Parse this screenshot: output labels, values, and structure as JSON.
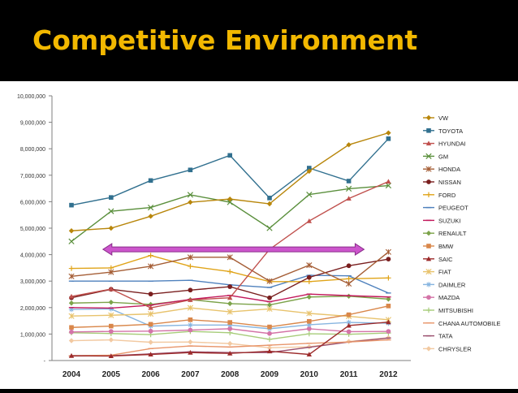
{
  "slide": {
    "title": "Competitive Environment"
  },
  "chart_data": {
    "type": "line",
    "x": [
      "2004",
      "2005",
      "2006",
      "2007",
      "2008",
      "2009",
      "2010",
      "2011",
      "2012"
    ],
    "ylim": [
      0,
      10000000
    ],
    "y_ticks": [
      "-",
      "1,000,000",
      "2,000,000",
      "3,000,000",
      "4,000,000",
      "5,000,000",
      "6,000,000",
      "7,000,000",
      "8,000,000",
      "9,000,000",
      "10,000,000"
    ],
    "legend_position": "right",
    "grid": false,
    "annotation": {
      "type": "double-headed-arrow",
      "color": "#cc55cc",
      "x_from": "2005",
      "x_to": "2012",
      "y": 4200000
    },
    "series": [
      {
        "name": "VW",
        "color": "#b8860b",
        "marker": "diamond",
        "values": [
          4900000,
          5000000,
          5450000,
          5980000,
          6100000,
          5920000,
          7150000,
          8150000,
          8600000
        ]
      },
      {
        "name": "TOYOTA",
        "color": "#31708f",
        "marker": "square",
        "values": [
          5870000,
          6160000,
          6800000,
          7200000,
          7750000,
          6140000,
          7270000,
          6780000,
          8380000
        ]
      },
      {
        "name": "HYUNDAI",
        "color": "#c0504d",
        "marker": "triangle",
        "values": [
          2420000,
          2700000,
          1990000,
          2290000,
          2370000,
          4200000,
          5270000,
          6120000,
          6760000
        ]
      },
      {
        "name": "GM",
        "color": "#5a8f3c",
        "marker": "x",
        "values": [
          4500000,
          5640000,
          5780000,
          6260000,
          5980000,
          5000000,
          6270000,
          6490000,
          6610000
        ]
      },
      {
        "name": "HONDA",
        "color": "#a55e36",
        "marker": "star",
        "values": [
          3180000,
          3340000,
          3560000,
          3900000,
          3900000,
          3000000,
          3600000,
          2900000,
          4100000
        ]
      },
      {
        "name": "NISSAN",
        "color": "#7a1f1f",
        "marker": "circle",
        "values": [
          2370000,
          2690000,
          2510000,
          2660000,
          2790000,
          2370000,
          3140000,
          3580000,
          3830000
        ]
      },
      {
        "name": "FORD",
        "color": "#e0a419",
        "marker": "plus",
        "values": [
          3480000,
          3500000,
          3970000,
          3560000,
          3360000,
          2980000,
          2980000,
          3090000,
          3120000
        ]
      },
      {
        "name": "PEUGEOT",
        "color": "#4f81bd",
        "marker": "dash",
        "values": [
          3000000,
          3000000,
          3000000,
          3030000,
          2860000,
          2760000,
          3220000,
          3200000,
          2550000
        ]
      },
      {
        "name": "SUZUKI",
        "color": "#c2185b",
        "marker": "dash",
        "values": [
          2000000,
          1980000,
          2090000,
          2310000,
          2460000,
          2220000,
          2510000,
          2450000,
          2400000
        ]
      },
      {
        "name": "RENAULT",
        "color": "#7ca34a",
        "marker": "diamond",
        "values": [
          2170000,
          2200000,
          2120000,
          2300000,
          2150000,
          2100000,
          2400000,
          2430000,
          2320000
        ]
      },
      {
        "name": "BMW",
        "color": "#d9874a",
        "marker": "square",
        "values": [
          1250000,
          1300000,
          1370000,
          1540000,
          1440000,
          1270000,
          1480000,
          1730000,
          2060000
        ]
      },
      {
        "name": "SAIC",
        "color": "#9c2b2b",
        "marker": "triangle",
        "values": [
          180000,
          170000,
          230000,
          300000,
          270000,
          350000,
          230000,
          1320000,
          1450000
        ]
      },
      {
        "name": "FIAT",
        "color": "#e8c36d",
        "marker": "star",
        "values": [
          1680000,
          1710000,
          1760000,
          1990000,
          1840000,
          1950000,
          1780000,
          1670000,
          1540000
        ]
      },
      {
        "name": "DAIMLER",
        "color": "#87b5e0",
        "marker": "asterisk",
        "values": [
          1930000,
          1950000,
          1300000,
          1340000,
          1340000,
          1200000,
          1350000,
          1440000,
          1410000
        ]
      },
      {
        "name": "MAZDA",
        "color": "#d474a8",
        "marker": "circle",
        "values": [
          1080000,
          1100000,
          1110000,
          1150000,
          1200000,
          1020000,
          1200000,
          1090000,
          1100000
        ]
      },
      {
        "name": "MITSUBISHI",
        "color": "#a7cc7a",
        "marker": "plus",
        "values": [
          1050000,
          1020000,
          980000,
          1100000,
          1050000,
          800000,
          1010000,
          990000,
          1040000
        ]
      },
      {
        "name": "CHANA AUTOMOBILE",
        "color": "#e8956a",
        "marker": "dash",
        "values": [
          180000,
          200000,
          450000,
          550000,
          510000,
          580000,
          650000,
          700000,
          780000
        ]
      },
      {
        "name": "TATA",
        "color": "#9a4f6e",
        "marker": "dash",
        "values": [
          170000,
          180000,
          250000,
          330000,
          300000,
          300000,
          500000,
          700000,
          850000
        ]
      },
      {
        "name": "CHRYSLER",
        "color": "#f2c9a1",
        "marker": "diamond",
        "values": [
          750000,
          780000,
          690000,
          700000,
          640000,
          480000,
          520000,
          720000,
          860000
        ]
      }
    ]
  }
}
